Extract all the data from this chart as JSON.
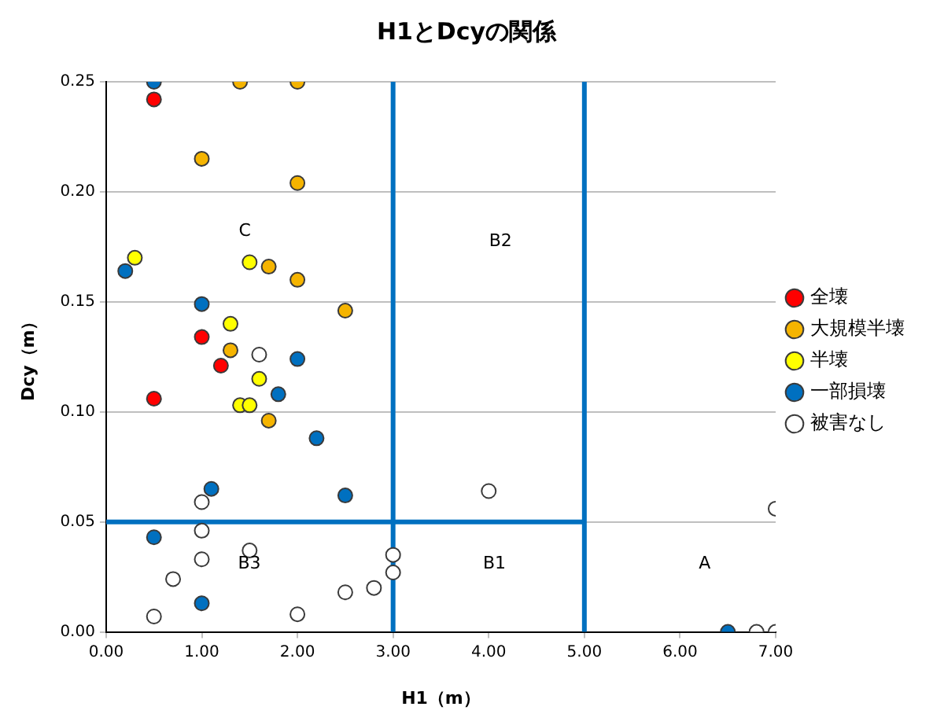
{
  "chart_data": {
    "type": "scatter",
    "title": "H1とDcyの関係",
    "xlabel": "H1（m）",
    "ylabel": "Dcy（m）",
    "xlim": [
      0,
      7
    ],
    "ylim": [
      0,
      0.25
    ],
    "xticks": [
      {
        "value": 0,
        "label": "0.00"
      },
      {
        "value": 1,
        "label": "1.00"
      },
      {
        "value": 2,
        "label": "2.00"
      },
      {
        "value": 3,
        "label": "3.00"
      },
      {
        "value": 4,
        "label": "4.00"
      },
      {
        "value": 5,
        "label": "5.00"
      },
      {
        "value": 6,
        "label": "6.00"
      },
      {
        "value": 7,
        "label": "7.00"
      }
    ],
    "yticks": [
      {
        "value": 0,
        "label": "0.00"
      },
      {
        "value": 0.05,
        "label": "0.05"
      },
      {
        "value": 0.1,
        "label": "0.10"
      },
      {
        "value": 0.15,
        "label": "0.15"
      },
      {
        "value": 0.2,
        "label": "0.20"
      },
      {
        "value": 0.25,
        "label": "0.25"
      }
    ],
    "grid": "y",
    "legend": "right",
    "marker": "circle",
    "series": [
      {
        "name": "全壊",
        "color": "#ff0000",
        "x": [
          0.5,
          1.0,
          1.2,
          0.5
        ],
        "values": [
          0.242,
          0.134,
          0.121,
          0.106
        ]
      },
      {
        "name": "大規模半壊",
        "color": "#f5b400",
        "x": [
          1.4,
          2.0,
          1.0,
          2.0,
          1.7,
          2.0,
          2.5,
          1.3,
          1.7
        ],
        "values": [
          0.25,
          0.25,
          0.215,
          0.204,
          0.166,
          0.16,
          0.146,
          0.128,
          0.096
        ]
      },
      {
        "name": "半壊",
        "color": "#ffff00",
        "x": [
          0.3,
          1.5,
          1.3,
          1.6,
          1.4,
          1.5
        ],
        "values": [
          0.17,
          0.168,
          0.14,
          0.115,
          0.103,
          0.103
        ]
      },
      {
        "name": "一部損壊",
        "color": "#0070c0",
        "x": [
          0.5,
          0.2,
          1.0,
          2.0,
          1.8,
          2.2,
          1.1,
          2.5,
          0.5,
          1.0,
          6.5
        ],
        "values": [
          0.25,
          0.164,
          0.149,
          0.124,
          0.108,
          0.088,
          0.065,
          0.062,
          0.043,
          0.013,
          0
        ]
      },
      {
        "name": "被害なし",
        "color": "#ffffff",
        "x": [
          1.6,
          1.0,
          1.0,
          1.5,
          1.0,
          0.7,
          0.5,
          2.0,
          2.5,
          2.8,
          3.0,
          3.0,
          4.0,
          7.0,
          6.8,
          7.0
        ],
        "values": [
          0.126,
          0.059,
          0.046,
          0.037,
          0.033,
          0.024,
          0.007,
          0.008,
          0.018,
          0.02,
          0.035,
          0.027,
          0.064,
          0.056,
          0,
          0
        ]
      },
      {
        "type": "line",
        "marker": "none",
        "color": "#0070c0",
        "x": [
          0,
          5
        ],
        "values": [
          0.05,
          0.05
        ]
      }
    ],
    "ref_lines": [
      {
        "axis": "x",
        "value": 3,
        "color": "#0070c0"
      },
      {
        "axis": "x",
        "value": 5,
        "color": "#0070c0"
      }
    ],
    "annotations": [
      "C",
      "B2",
      "B3",
      "B1",
      "A"
    ]
  }
}
